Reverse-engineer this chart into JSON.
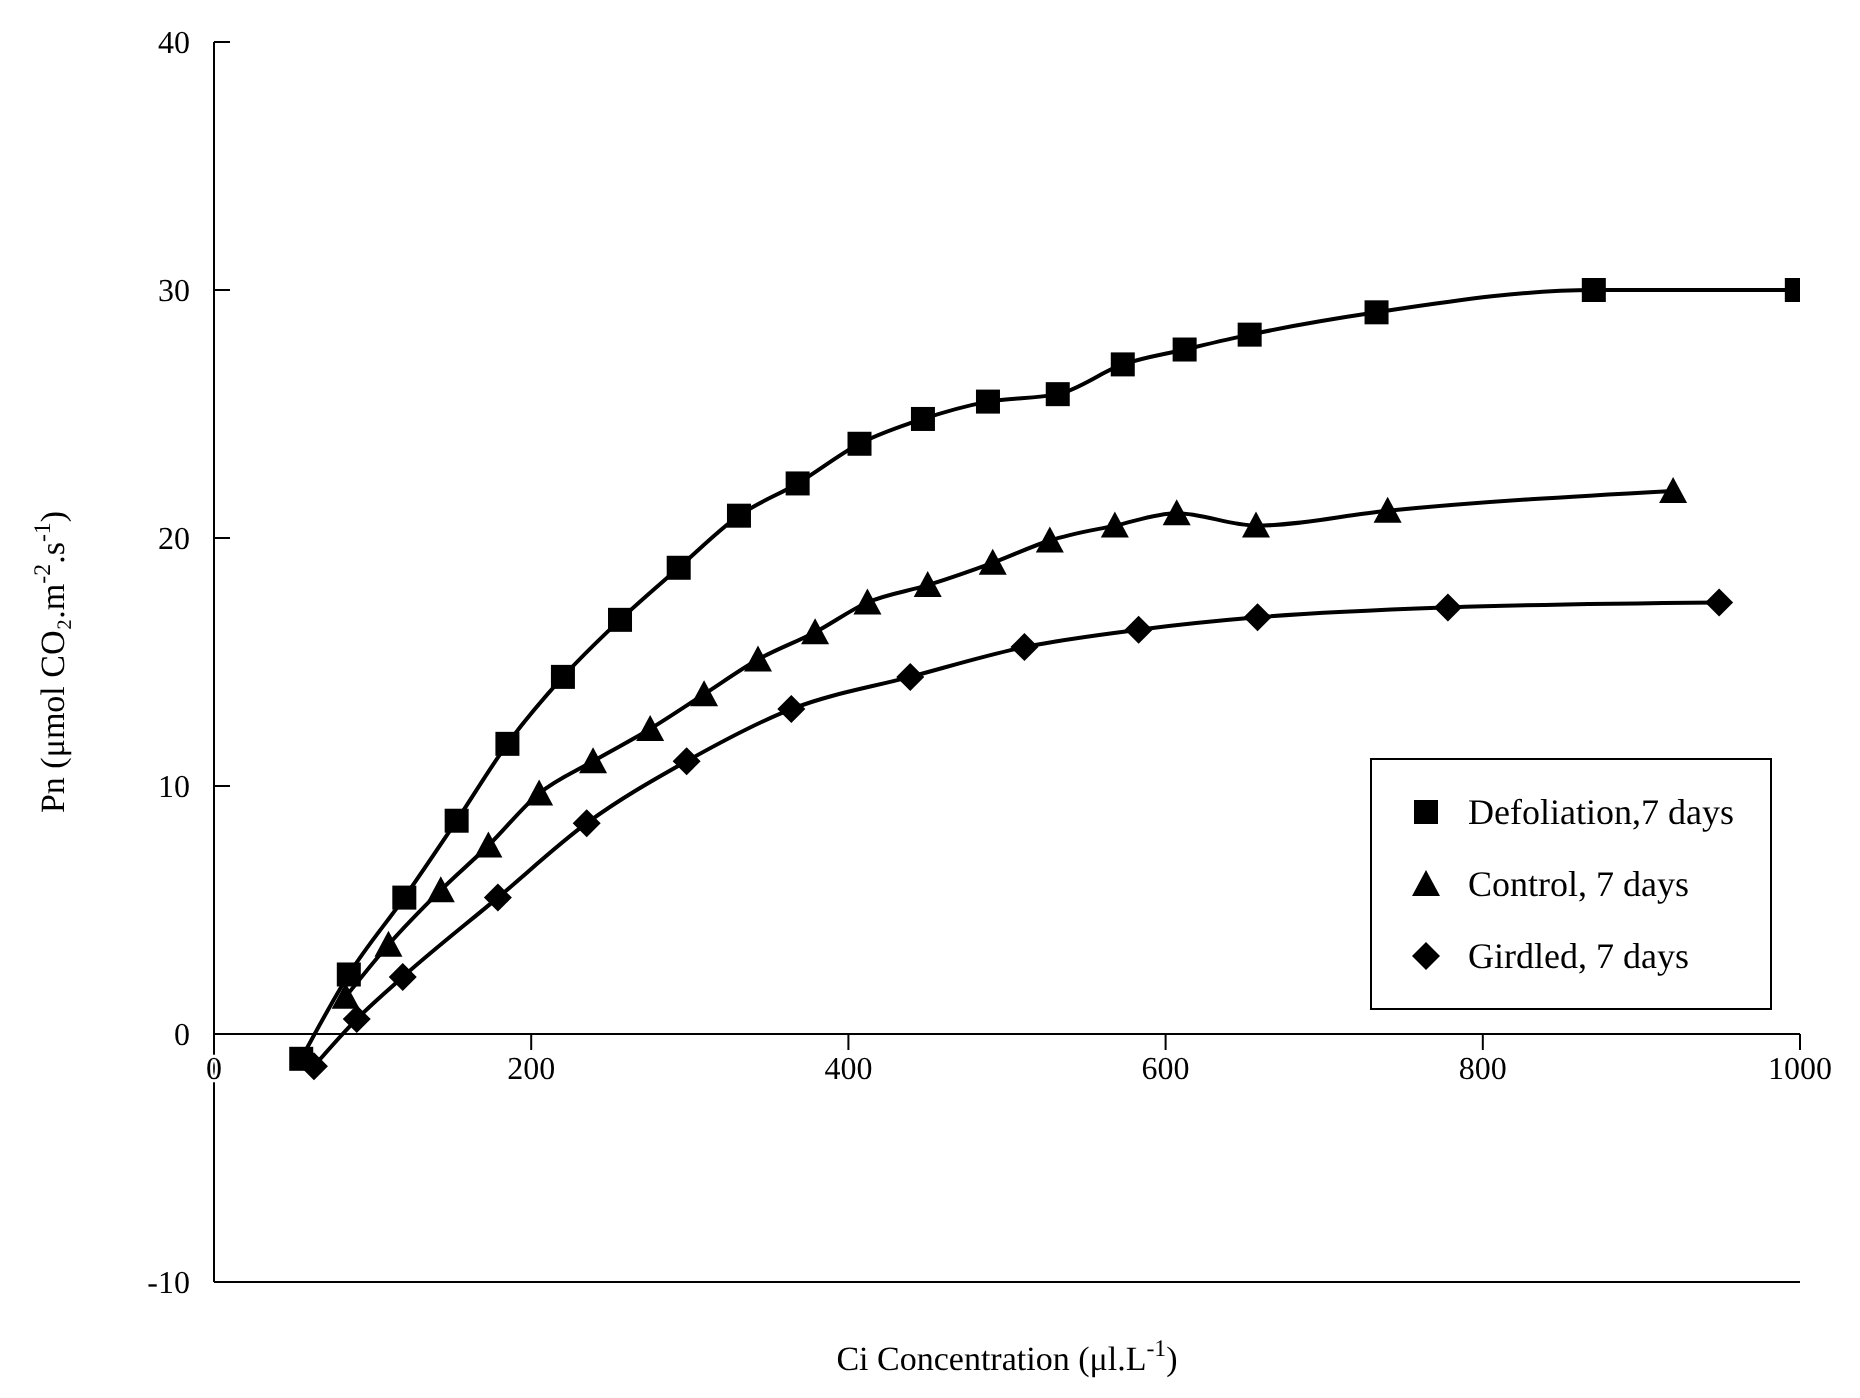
{
  "chart_data": {
    "type": "line",
    "xlabel": "Ci Concentration (μl.L$^{-1}$)",
    "ylabel": "Pn (μmol CO₂.m$^{-2}$.s$^{-1}$)",
    "xlim": [
      0,
      1000
    ],
    "xticks": [
      0,
      200,
      400,
      600,
      800,
      1000
    ],
    "ylim": [
      -10,
      40
    ],
    "yticks": [
      -10,
      0,
      10,
      20,
      30,
      40
    ],
    "grid": false,
    "legend": "bottom right",
    "line_style": "solid",
    "series": [
      {
        "name": "Defoliation,7 days",
        "color": "#000000",
        "marker": "square",
        "x": [
          55,
          85,
          120,
          153,
          185,
          220,
          256,
          293,
          331,
          368,
          407,
          447,
          488,
          532,
          573,
          612,
          653,
          733,
          870,
          998
        ],
        "values": [
          -1.0,
          2.4,
          5.5,
          8.6,
          11.7,
          14.4,
          16.7,
          18.8,
          20.9,
          22.2,
          23.8,
          24.8,
          25.5,
          25.8,
          27.0,
          27.6,
          28.2,
          29.1,
          30.0,
          30.0
        ]
      },
      {
        "name": "Control, 7 days",
        "color": "#000000",
        "marker": "triangle",
        "x": [
          83,
          110,
          143,
          173,
          205,
          239,
          275,
          309,
          343,
          379,
          412,
          450,
          491,
          527,
          568,
          607,
          657,
          740,
          920
        ],
        "values": [
          1.5,
          3.6,
          5.8,
          7.6,
          9.7,
          11.0,
          12.3,
          13.7,
          15.1,
          16.2,
          17.4,
          18.1,
          19.0,
          19.9,
          20.5,
          21.0,
          20.5,
          21.1,
          21.9
        ]
      },
      {
        "name": "Girdled, 7 days",
        "color": "#000000",
        "marker": "diamond",
        "x": [
          63,
          90,
          119,
          179,
          235,
          298,
          364,
          439,
          511,
          583,
          658,
          778,
          949
        ],
        "values": [
          -1.3,
          0.6,
          2.3,
          5.5,
          8.5,
          11.0,
          13.1,
          14.4,
          15.6,
          16.3,
          16.8,
          17.2,
          17.4
        ]
      }
    ]
  }
}
